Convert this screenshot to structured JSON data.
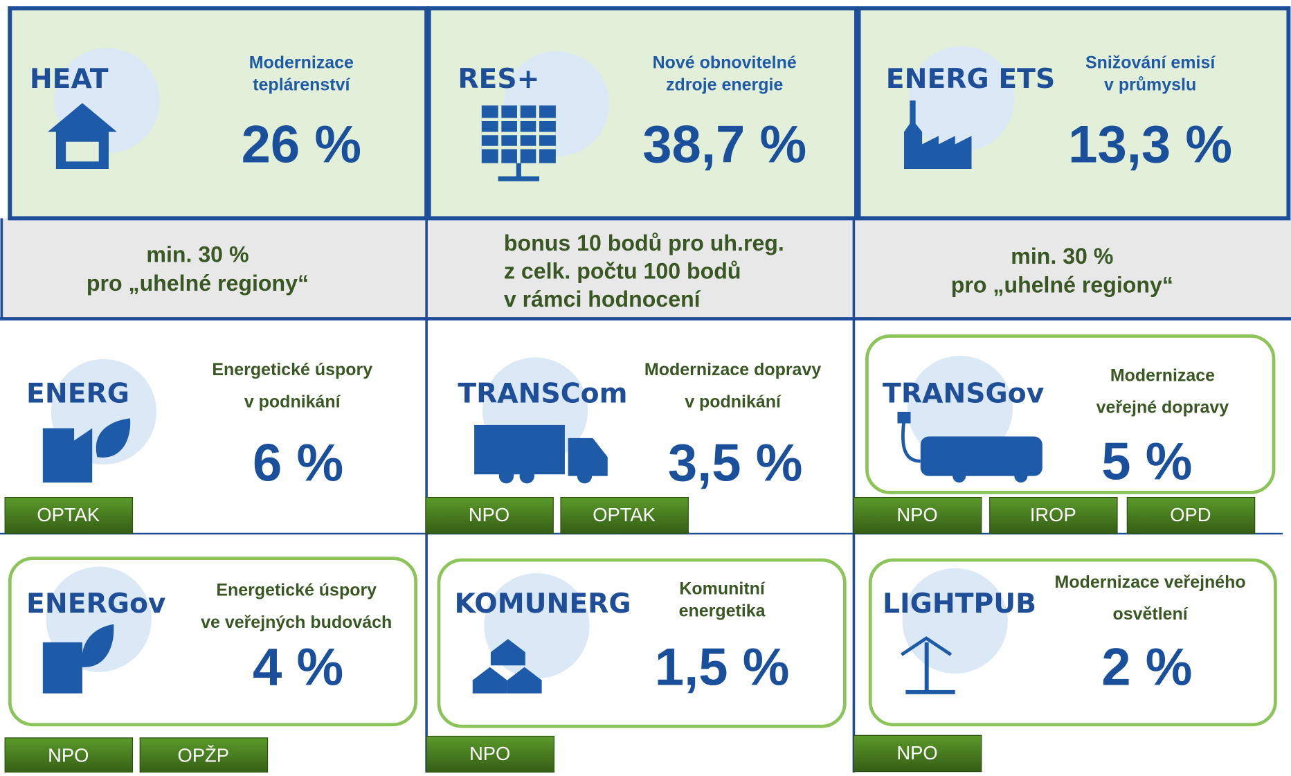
{
  "panels": [
    {
      "code": "HEAT",
      "description": [
        "Modernizace",
        "teplárenství"
      ],
      "share": "26 %",
      "note": [
        "min. 30 %",
        "pro „uhelné regiony“"
      ]
    },
    {
      "code": "RES+",
      "description": [
        "Nové obnovitelné",
        "zdroje energie"
      ],
      "share": "38,7 %",
      "note": [
        "bonus 10 bodů pro uh.reg.",
        "z celk. počtu 100 bodů",
        "v rámci hodnocení"
      ]
    },
    {
      "code": "ENERG ETS",
      "description": [
        "Snižování emisí",
        "v průmyslu"
      ],
      "share": "13,3 %",
      "note": [
        "min. 30 %",
        "pro „uhelné regiony“"
      ]
    },
    {
      "code": "ENERG",
      "description": [
        "Energetické úspory",
        "v podnikání"
      ],
      "share": "6 %",
      "programs": [
        "OPTAK"
      ]
    },
    {
      "code": "TRANSCom",
      "description": [
        "Modernizace dopravy",
        "v podnikání"
      ],
      "share": "3,5 %",
      "programs": [
        "NPO",
        "OPTAK"
      ]
    },
    {
      "code": "TRANSGov",
      "description": [
        "Modernizace",
        "veřejné dopravy"
      ],
      "share": "5 %",
      "programs": [
        "NPO",
        "IROP",
        "OPD"
      ]
    },
    {
      "code": "ENERGov",
      "description": [
        "Energetické úspory",
        "ve veřejných budovách"
      ],
      "share": "4 %",
      "programs": [
        "NPO",
        "OPŽP"
      ]
    },
    {
      "code": "KOMUNERG",
      "description": [
        "Komunitní",
        "energetika"
      ],
      "share": "1,5 %",
      "programs": [
        "NPO"
      ]
    },
    {
      "code": "LIGHTPUB",
      "description": [
        "Modernizace veřejného",
        "osvětlení"
      ],
      "share": "2 %",
      "programs": [
        "NPO"
      ]
    }
  ]
}
